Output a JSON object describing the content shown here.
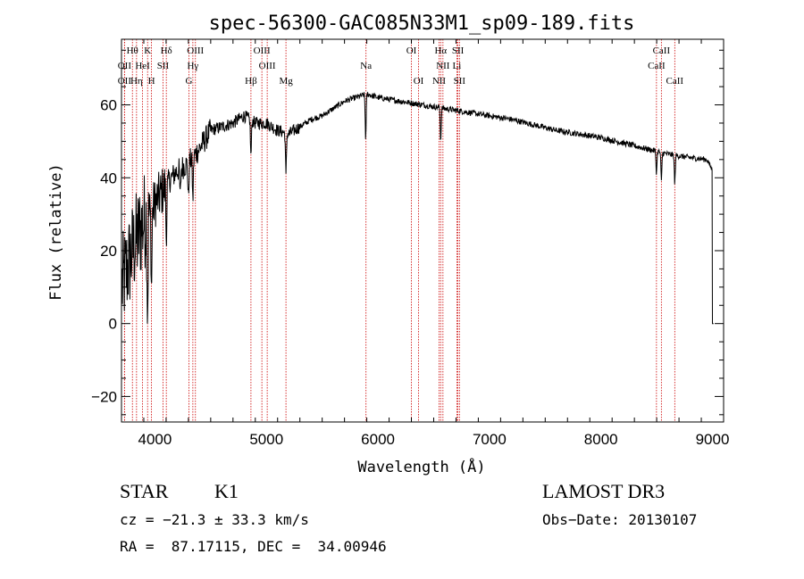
{
  "chart_data": {
    "type": "line",
    "title": "spec-56300-GAC085N33M1_sp09-189.fits",
    "xlabel": "Wavelength (Å)",
    "ylabel": "Flux (relative)",
    "xlim": [
      3700,
      9100
    ],
    "ylim": [
      -27,
      78
    ],
    "xticks": [
      4000,
      5000,
      6000,
      7000,
      8000,
      9000
    ],
    "yticks": [
      -20,
      0,
      20,
      40,
      60
    ],
    "series": [
      {
        "name": "flux",
        "continuum_points": [
          [
            3700,
            10
          ],
          [
            3800,
            20
          ],
          [
            3900,
            28
          ],
          [
            4000,
            33
          ],
          [
            4100,
            38
          ],
          [
            4200,
            42
          ],
          [
            4300,
            44
          ],
          [
            4400,
            48
          ],
          [
            4500,
            53
          ],
          [
            4600,
            54
          ],
          [
            4700,
            55
          ],
          [
            4800,
            57
          ],
          [
            4900,
            55
          ],
          [
            5000,
            55
          ],
          [
            5100,
            53
          ],
          [
            5200,
            52
          ],
          [
            5300,
            54
          ],
          [
            5400,
            56
          ],
          [
            5500,
            57
          ],
          [
            5600,
            59
          ],
          [
            5700,
            61
          ],
          [
            5800,
            62
          ],
          [
            5900,
            63
          ],
          [
            6000,
            62
          ],
          [
            6200,
            61
          ],
          [
            6400,
            60
          ],
          [
            6600,
            59
          ],
          [
            6800,
            58
          ],
          [
            7000,
            57
          ],
          [
            7200,
            56
          ],
          [
            7400,
            54.5
          ],
          [
            7600,
            53
          ],
          [
            7800,
            52
          ],
          [
            8000,
            51
          ],
          [
            8200,
            49.5
          ],
          [
            8400,
            48
          ],
          [
            8600,
            46.5
          ],
          [
            8800,
            45.5
          ],
          [
            8950,
            45
          ],
          [
            9000,
            42
          ]
        ],
        "absorption_dips": [
          [
            3934,
            25
          ],
          [
            3969,
            22
          ],
          [
            4102,
            15
          ],
          [
            4227,
            8
          ],
          [
            4300,
            10
          ],
          [
            4340,
            12
          ],
          [
            4861,
            10
          ],
          [
            5175,
            12
          ],
          [
            5890,
            12
          ],
          [
            6563,
            9
          ],
          [
            8498,
            6
          ],
          [
            8542,
            8
          ],
          [
            8662,
            8
          ]
        ]
      }
    ],
    "spectral_lines": [
      {
        "label": "Hθ",
        "wave": 3798,
        "row": 0
      },
      {
        "label": "K",
        "wave": 3934,
        "row": 0
      },
      {
        "label": "Hδ",
        "wave": 4102,
        "row": 0
      },
      {
        "label": "OIII",
        "wave": 4363,
        "row": 0
      },
      {
        "label": "OIII",
        "wave": 4959,
        "row": 0
      },
      {
        "label": "OI",
        "wave": 6300,
        "row": 0
      },
      {
        "label": "Hα",
        "wave": 6563,
        "row": 0
      },
      {
        "label": "SII",
        "wave": 6717,
        "row": 0
      },
      {
        "label": "CaII",
        "wave": 8542,
        "row": 0
      },
      {
        "label": "OII",
        "wave": 3727,
        "row": 1
      },
      {
        "label": "HeI",
        "wave": 3889,
        "row": 1
      },
      {
        "label": "SII",
        "wave": 4072,
        "row": 1
      },
      {
        "label": "Hγ",
        "wave": 4340,
        "row": 1
      },
      {
        "label": "OIII",
        "wave": 5007,
        "row": 1
      },
      {
        "label": "Na",
        "wave": 5893,
        "row": 1
      },
      {
        "label": "NII",
        "wave": 6583,
        "row": 1
      },
      {
        "label": "Li",
        "wave": 6708,
        "row": 1
      },
      {
        "label": "CaII",
        "wave": 8498,
        "row": 1
      },
      {
        "label": "OII",
        "wave": 3727,
        "row": 2
      },
      {
        "label": "Hη",
        "wave": 3835,
        "row": 2
      },
      {
        "label": "H",
        "wave": 3969,
        "row": 2
      },
      {
        "label": "G",
        "wave": 4305,
        "row": 2
      },
      {
        "label": "Hβ",
        "wave": 4861,
        "row": 2
      },
      {
        "label": "Mg",
        "wave": 5175,
        "row": 2
      },
      {
        "label": "OI",
        "wave": 6364,
        "row": 2
      },
      {
        "label": "NII",
        "wave": 6548,
        "row": 2
      },
      {
        "label": "SII",
        "wave": 6731,
        "row": 2
      },
      {
        "label": "CaII",
        "wave": 8662,
        "row": 2
      }
    ],
    "colors": {
      "line": "#000000",
      "marker": "#cc0000"
    }
  },
  "info": {
    "class": "STAR",
    "subclass": "K1",
    "survey": "LAMOST DR3",
    "cz": "cz = −21.3 ± 33.3 km/s",
    "obsdate": "Obs−Date: 20130107",
    "radec": "RA =  87.17115, DEC =  34.00946"
  }
}
